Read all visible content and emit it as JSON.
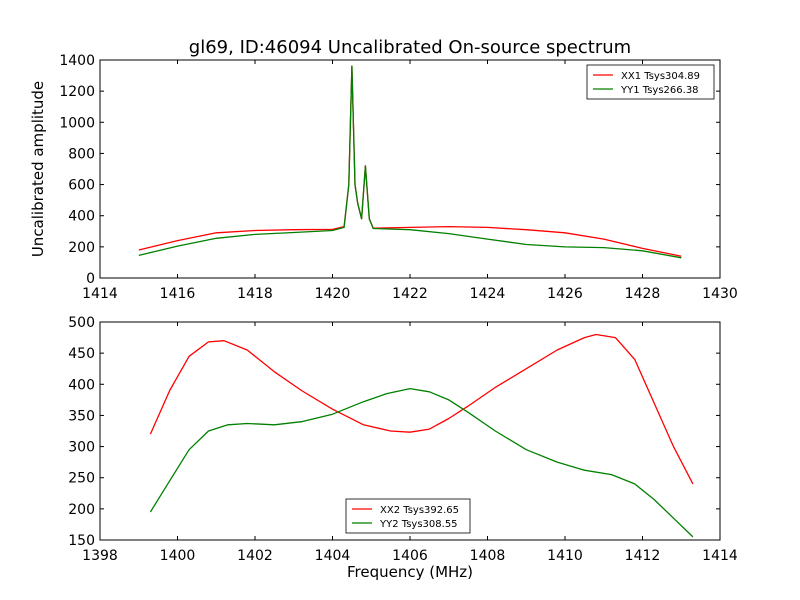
{
  "figure": {
    "title": "gl69, ID:46094 Uncalibrated On-source spectrum",
    "shared_xlabel": "Frequency (MHz)"
  },
  "chart_data": [
    {
      "type": "line",
      "title": "gl69, ID:46094 Uncalibrated On-source spectrum",
      "xlabel": "",
      "ylabel": "Uncalibrated amplitude",
      "xlim": [
        1414,
        1430
      ],
      "ylim": [
        0,
        1400
      ],
      "xticks": [
        "1414",
        "1416",
        "1418",
        "1420",
        "1422",
        "1424",
        "1426",
        "1428",
        "1430"
      ],
      "yticks": [
        "0",
        "200",
        "400",
        "600",
        "800",
        "1000",
        "1200",
        "1400"
      ],
      "grid": false,
      "legend_position": "top-right",
      "series": [
        {
          "name": "XX1 Tsys304.89",
          "color": "#ff0000",
          "x": [
            1415,
            1416,
            1417,
            1418,
            1419,
            1420,
            1420.3,
            1420.42,
            1420.5,
            1420.58,
            1420.65,
            1420.75,
            1420.85,
            1420.95,
            1421.05,
            1422,
            1423,
            1424,
            1425,
            1426,
            1427,
            1428,
            1429
          ],
          "y": [
            180,
            240,
            290,
            305,
            310,
            312,
            330,
            600,
            1360,
            600,
            480,
            380,
            720,
            380,
            320,
            325,
            330,
            325,
            310,
            290,
            250,
            190,
            140
          ]
        },
        {
          "name": "YY1 Tsys266.38",
          "color": "#008000",
          "x": [
            1415,
            1416,
            1417,
            1418,
            1419,
            1420,
            1420.3,
            1420.42,
            1420.5,
            1420.58,
            1420.65,
            1420.75,
            1420.85,
            1420.95,
            1421.05,
            1422,
            1423,
            1424,
            1425,
            1426,
            1427,
            1428,
            1429
          ],
          "y": [
            145,
            205,
            255,
            280,
            292,
            305,
            325,
            600,
            1360,
            600,
            480,
            380,
            720,
            380,
            318,
            310,
            285,
            250,
            215,
            200,
            195,
            175,
            130
          ]
        }
      ]
    },
    {
      "type": "line",
      "title": "",
      "xlabel": "Frequency (MHz)",
      "ylabel": "",
      "xlim": [
        1398,
        1414
      ],
      "ylim": [
        150,
        500
      ],
      "xticks": [
        "1398",
        "1400",
        "1402",
        "1404",
        "1406",
        "1408",
        "1410",
        "1412",
        "1414"
      ],
      "yticks": [
        "150",
        "200",
        "250",
        "300",
        "350",
        "400",
        "450",
        "500"
      ],
      "grid": false,
      "legend_position": "bottom-center",
      "series": [
        {
          "name": "XX2 Tsys392.65",
          "color": "#ff0000",
          "x": [
            1399.3,
            1399.8,
            1400.3,
            1400.8,
            1401.2,
            1401.8,
            1402.5,
            1403.2,
            1404,
            1404.8,
            1405.5,
            1406,
            1406.5,
            1407,
            1407.5,
            1408.2,
            1409,
            1409.8,
            1410.5,
            1410.8,
            1411.3,
            1411.8,
            1412.3,
            1412.8,
            1413.3
          ],
          "y": [
            320,
            390,
            445,
            468,
            470,
            455,
            420,
            390,
            360,
            335,
            325,
            323,
            328,
            345,
            365,
            395,
            425,
            455,
            475,
            480,
            475,
            440,
            370,
            300,
            240
          ]
        },
        {
          "name": "YY2 Tsys308.55",
          "color": "#008000",
          "x": [
            1399.3,
            1399.8,
            1400.3,
            1400.8,
            1401.3,
            1401.8,
            1402.5,
            1403.2,
            1404,
            1404.8,
            1405.4,
            1406,
            1406.5,
            1407,
            1407.5,
            1408.2,
            1409,
            1409.8,
            1410.5,
            1411.2,
            1411.8,
            1412.3,
            1412.8,
            1413.3
          ],
          "y": [
            195,
            245,
            295,
            325,
            335,
            337,
            335,
            340,
            352,
            372,
            385,
            393,
            388,
            375,
            355,
            325,
            295,
            275,
            262,
            255,
            240,
            215,
            185,
            155
          ]
        }
      ]
    }
  ]
}
